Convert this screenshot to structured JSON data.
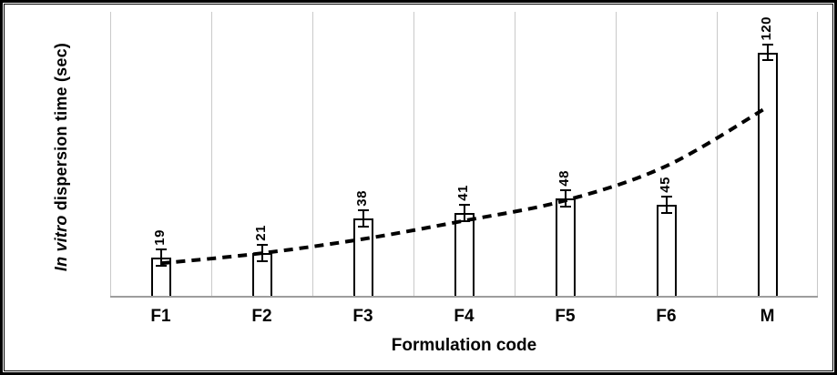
{
  "chart_data": {
    "type": "bar",
    "title": "",
    "categories": [
      "F1",
      "F2",
      "F3",
      "F4",
      "F5",
      "F6",
      "M"
    ],
    "values": [
      19,
      21,
      38,
      41,
      48,
      45,
      120
    ],
    "value_labels": [
      "19",
      "21",
      "38",
      "41",
      "48",
      "45",
      "120"
    ],
    "error_bar": 4,
    "trend": [
      16,
      21,
      28,
      37,
      47,
      64,
      93
    ],
    "trend_style": "dashed",
    "xlabel": "Formulation code",
    "ylabel_italic": "In vitro",
    "ylabel_rest": " dispersion time (sec)",
    "ylim": [
      0,
      140
    ],
    "grid": "vertical-category-boundaries",
    "bar_fill": "#ffffff",
    "bar_border": "#000000",
    "gridline_color": "#c9c9c9",
    "axis_line_color": "#9d9d9d",
    "trend_color": "#000000"
  }
}
